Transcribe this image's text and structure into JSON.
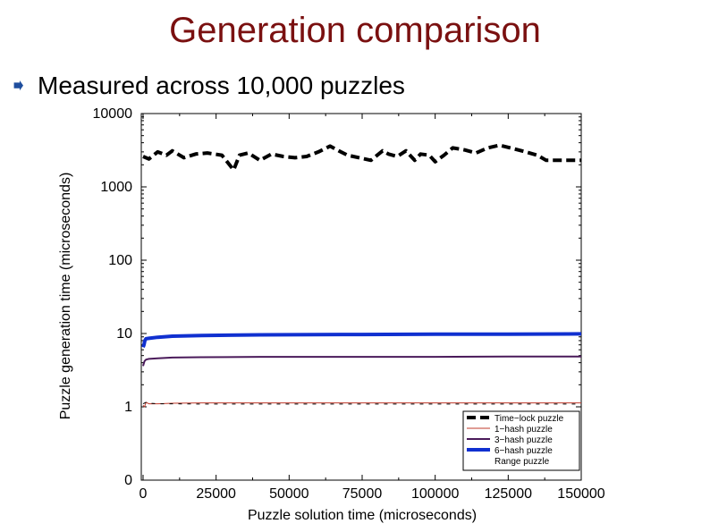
{
  "slide": {
    "title": "Generation comparison",
    "bullet": "Measured across 10,000 puzzles",
    "bullet_icon": "arrow-bullet-icon"
  },
  "colors": {
    "title": "#7a1010",
    "time_lock": "#000000",
    "one_hash": "#c0392b",
    "three_hash": "#4a1a5a",
    "six_hash": "#1030d0",
    "range": "#000000"
  },
  "chart_data": {
    "type": "line",
    "xlabel": "Puzzle solution time (microseconds)",
    "ylabel": "Puzzle generation time (microseconds)",
    "xlim": [
      0,
      150000
    ],
    "ylim": [
      0,
      10000
    ],
    "yscale": "log (0 shown at bottom tick)",
    "x_ticks": [
      0,
      25000,
      50000,
      75000,
      100000,
      125000,
      150000
    ],
    "x_tick_labels": [
      "0",
      "25000",
      "50000",
      "75000",
      "100000",
      "125000",
      "150000"
    ],
    "y_ticks": [
      0,
      1,
      10,
      100,
      1000,
      10000
    ],
    "y_tick_labels": [
      "0",
      "1",
      "10",
      "100",
      "1000",
      "10000"
    ],
    "legend_position": "bottom-right",
    "series": [
      {
        "name": "Time−lock puzzle",
        "style": "dashed-thick",
        "x": [
          0,
          2000,
          5000,
          8000,
          10000,
          14000,
          18000,
          22000,
          27000,
          31000,
          33000,
          36000,
          40000,
          44000,
          48000,
          52000,
          56000,
          60000,
          64000,
          67000,
          70000,
          74000,
          78000,
          82000,
          84000,
          87000,
          90000,
          93000,
          95000,
          98000,
          100000,
          103000,
          106000,
          110000,
          114000,
          118000,
          122000,
          127000,
          131000,
          135000,
          138000,
          141000,
          145000,
          150000
        ],
        "y": [
          2600,
          2400,
          3000,
          2700,
          3100,
          2500,
          2800,
          2900,
          2700,
          1700,
          2700,
          2900,
          2300,
          2800,
          2600,
          2500,
          2600,
          3000,
          3600,
          3100,
          2700,
          2500,
          2300,
          3100,
          2800,
          2600,
          3100,
          2300,
          2800,
          2700,
          2200,
          2700,
          3400,
          3200,
          2900,
          3400,
          3700,
          3300,
          3000,
          2700,
          2300,
          2300,
          2300,
          2300
        ]
      },
      {
        "name": "1−hash puzzle",
        "style": "solid-thin",
        "x": [
          0,
          500,
          1000,
          2000,
          5000,
          10000,
          20000,
          40000,
          75000,
          100000,
          125000,
          150000
        ],
        "y": [
          1.05,
          1.0,
          1.15,
          1.1,
          1.1,
          1.12,
          1.13,
          1.13,
          1.13,
          1.13,
          1.13,
          1.13
        ]
      },
      {
        "name": "3−hash puzzle",
        "style": "solid-medium",
        "x": [
          0,
          500,
          1000,
          2000,
          5000,
          10000,
          20000,
          40000,
          75000,
          100000,
          125000,
          150000
        ],
        "y": [
          3.6,
          4.2,
          4.4,
          4.5,
          4.6,
          4.7,
          4.75,
          4.8,
          4.8,
          4.8,
          4.85,
          4.85
        ]
      },
      {
        "name": "6−hash puzzle",
        "style": "solid-thick",
        "x": [
          0,
          300,
          600,
          1000,
          2000,
          5000,
          10000,
          20000,
          40000,
          75000,
          100000,
          125000,
          150000
        ],
        "y": [
          6.5,
          7.0,
          8.0,
          8.5,
          8.6,
          8.9,
          9.2,
          9.4,
          9.6,
          9.7,
          9.8,
          9.8,
          9.9
        ]
      },
      {
        "name": "Range puzzle",
        "style": "dotted-thin",
        "x": [
          0,
          1000,
          2000,
          5000,
          10000,
          20000,
          40000,
          75000,
          100000,
          125000,
          150000
        ],
        "y": [
          1.1,
          1.15,
          1.12,
          1.1,
          1.1,
          1.09,
          1.09,
          1.09,
          1.09,
          1.09,
          1.09
        ]
      }
    ]
  }
}
